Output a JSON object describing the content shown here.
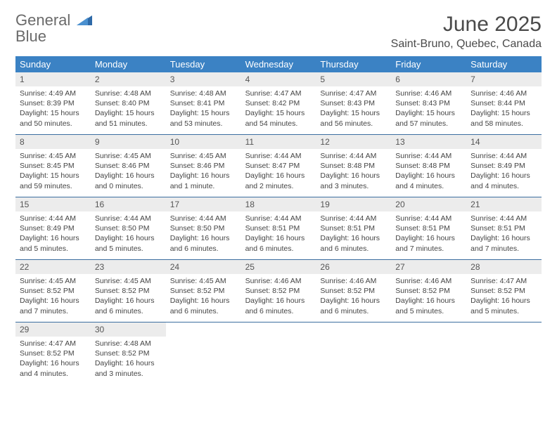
{
  "logo": {
    "text1": "General",
    "text2": "Blue"
  },
  "title": "June 2025",
  "location": "Saint-Bruno, Quebec, Canada",
  "colors": {
    "header_bg": "#3b82c4",
    "header_text": "#ffffff",
    "daynum_bg": "#ececec",
    "week_border": "#3b6ea0",
    "text": "#444444",
    "logo_gray": "#6a6a6a",
    "logo_blue": "#3b82c4"
  },
  "weekdays": [
    "Sunday",
    "Monday",
    "Tuesday",
    "Wednesday",
    "Thursday",
    "Friday",
    "Saturday"
  ],
  "days": [
    {
      "n": "1",
      "sr": "4:49 AM",
      "ss": "8:39 PM",
      "dl": "15 hours and 50 minutes."
    },
    {
      "n": "2",
      "sr": "4:48 AM",
      "ss": "8:40 PM",
      "dl": "15 hours and 51 minutes."
    },
    {
      "n": "3",
      "sr": "4:48 AM",
      "ss": "8:41 PM",
      "dl": "15 hours and 53 minutes."
    },
    {
      "n": "4",
      "sr": "4:47 AM",
      "ss": "8:42 PM",
      "dl": "15 hours and 54 minutes."
    },
    {
      "n": "5",
      "sr": "4:47 AM",
      "ss": "8:43 PM",
      "dl": "15 hours and 56 minutes."
    },
    {
      "n": "6",
      "sr": "4:46 AM",
      "ss": "8:43 PM",
      "dl": "15 hours and 57 minutes."
    },
    {
      "n": "7",
      "sr": "4:46 AM",
      "ss": "8:44 PM",
      "dl": "15 hours and 58 minutes."
    },
    {
      "n": "8",
      "sr": "4:45 AM",
      "ss": "8:45 PM",
      "dl": "15 hours and 59 minutes."
    },
    {
      "n": "9",
      "sr": "4:45 AM",
      "ss": "8:46 PM",
      "dl": "16 hours and 0 minutes."
    },
    {
      "n": "10",
      "sr": "4:45 AM",
      "ss": "8:46 PM",
      "dl": "16 hours and 1 minute."
    },
    {
      "n": "11",
      "sr": "4:44 AM",
      "ss": "8:47 PM",
      "dl": "16 hours and 2 minutes."
    },
    {
      "n": "12",
      "sr": "4:44 AM",
      "ss": "8:48 PM",
      "dl": "16 hours and 3 minutes."
    },
    {
      "n": "13",
      "sr": "4:44 AM",
      "ss": "8:48 PM",
      "dl": "16 hours and 4 minutes."
    },
    {
      "n": "14",
      "sr": "4:44 AM",
      "ss": "8:49 PM",
      "dl": "16 hours and 4 minutes."
    },
    {
      "n": "15",
      "sr": "4:44 AM",
      "ss": "8:49 PM",
      "dl": "16 hours and 5 minutes."
    },
    {
      "n": "16",
      "sr": "4:44 AM",
      "ss": "8:50 PM",
      "dl": "16 hours and 5 minutes."
    },
    {
      "n": "17",
      "sr": "4:44 AM",
      "ss": "8:50 PM",
      "dl": "16 hours and 6 minutes."
    },
    {
      "n": "18",
      "sr": "4:44 AM",
      "ss": "8:51 PM",
      "dl": "16 hours and 6 minutes."
    },
    {
      "n": "19",
      "sr": "4:44 AM",
      "ss": "8:51 PM",
      "dl": "16 hours and 6 minutes."
    },
    {
      "n": "20",
      "sr": "4:44 AM",
      "ss": "8:51 PM",
      "dl": "16 hours and 7 minutes."
    },
    {
      "n": "21",
      "sr": "4:44 AM",
      "ss": "8:51 PM",
      "dl": "16 hours and 7 minutes."
    },
    {
      "n": "22",
      "sr": "4:45 AM",
      "ss": "8:52 PM",
      "dl": "16 hours and 7 minutes."
    },
    {
      "n": "23",
      "sr": "4:45 AM",
      "ss": "8:52 PM",
      "dl": "16 hours and 6 minutes."
    },
    {
      "n": "24",
      "sr": "4:45 AM",
      "ss": "8:52 PM",
      "dl": "16 hours and 6 minutes."
    },
    {
      "n": "25",
      "sr": "4:46 AM",
      "ss": "8:52 PM",
      "dl": "16 hours and 6 minutes."
    },
    {
      "n": "26",
      "sr": "4:46 AM",
      "ss": "8:52 PM",
      "dl": "16 hours and 6 minutes."
    },
    {
      "n": "27",
      "sr": "4:46 AM",
      "ss": "8:52 PM",
      "dl": "16 hours and 5 minutes."
    },
    {
      "n": "28",
      "sr": "4:47 AM",
      "ss": "8:52 PM",
      "dl": "16 hours and 5 minutes."
    },
    {
      "n": "29",
      "sr": "4:47 AM",
      "ss": "8:52 PM",
      "dl": "16 hours and 4 minutes."
    },
    {
      "n": "30",
      "sr": "4:48 AM",
      "ss": "8:52 PM",
      "dl": "16 hours and 3 minutes."
    }
  ],
  "labels": {
    "sunrise": "Sunrise: ",
    "sunset": "Sunset: ",
    "daylight": "Daylight: "
  }
}
